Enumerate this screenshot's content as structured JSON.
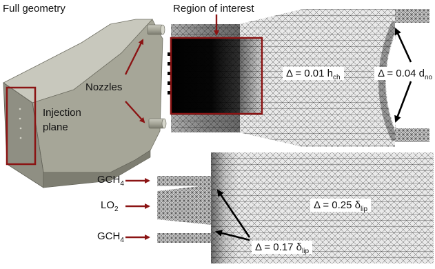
{
  "labels": {
    "full_geometry": "Full geometry",
    "region_of_interest": "Region of interest",
    "nozzles": "Nozzles",
    "injection_plane_line1": "Injection",
    "injection_plane_line2": "plane"
  },
  "mesh_annotations": {
    "chamber": {
      "prefix": "Δ = 0.01 h",
      "sub": "ch"
    },
    "nozzle_exit": {
      "prefix": "Δ = 0.04 d",
      "sub": "no"
    },
    "downstream": {
      "prefix": "Δ = 0.25 δ",
      "sub": "lip"
    },
    "lip": {
      "prefix": "Δ = 0.17 δ",
      "sub": "lip"
    }
  },
  "inlets": [
    {
      "name": "GCH",
      "sub": "4"
    },
    {
      "name": "LO",
      "sub": "2"
    },
    {
      "name": "GCH",
      "sub": "4"
    }
  ],
  "colors": {
    "highlight": "#8b1414",
    "geometry_face": "#9b9b8e",
    "mesh_ink": "#1a1a1a"
  }
}
